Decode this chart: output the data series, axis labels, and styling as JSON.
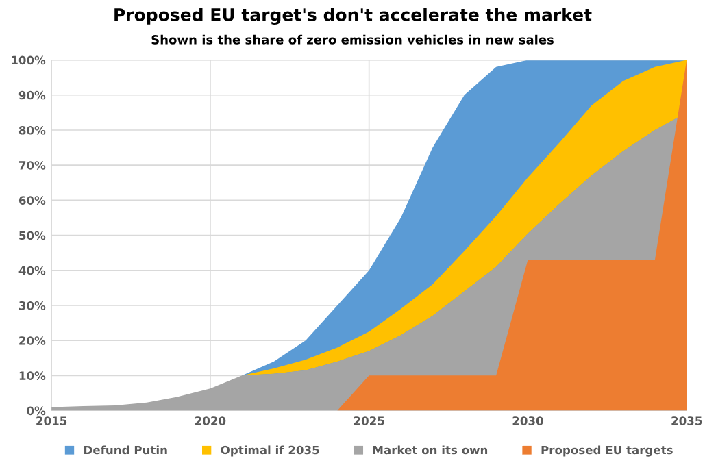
{
  "chart_data": {
    "type": "area",
    "title": "Proposed EU target's don't accelerate the market",
    "subtitle": "Shown is the share of zero emission vehicles in new sales",
    "x": [
      2015,
      2016,
      2017,
      2018,
      2019,
      2020,
      2021,
      2022,
      2023,
      2024,
      2025,
      2026,
      2027,
      2028,
      2029,
      2030,
      2031,
      2032,
      2033,
      2034,
      2035
    ],
    "series": [
      {
        "name": "Defund Putin",
        "color": "#5b9bd5",
        "x": [
          2021,
          2022,
          2023,
          2024,
          2025,
          2026,
          2027,
          2028,
          2029,
          2030,
          2031,
          2032,
          2033,
          2034,
          2035
        ],
        "values": [
          10,
          14,
          20,
          30,
          40,
          55,
          75,
          90,
          98,
          100,
          100,
          100,
          100,
          100,
          100
        ]
      },
      {
        "name": "Optimal if 2035",
        "color": "#ffc000",
        "x": [
          2021,
          2022,
          2023,
          2024,
          2025,
          2026,
          2027,
          2028,
          2029,
          2030,
          2031,
          2032,
          2033,
          2034,
          2035
        ],
        "values": [
          10,
          12,
          14.5,
          18,
          22.5,
          29,
          36,
          45.5,
          55.5,
          66.5,
          76.5,
          87,
          94,
          98,
          100
        ]
      },
      {
        "name": "Market on its own",
        "color": "#a5a5a5",
        "values": [
          1,
          1.3,
          1.5,
          2.3,
          4,
          6.3,
          10,
          10.5,
          11.5,
          14,
          17,
          21.5,
          27,
          34,
          41,
          50.5,
          59,
          67,
          74,
          80,
          85
        ]
      },
      {
        "name": "Proposed EU targets",
        "color": "#ed7d31",
        "x": [
          2024,
          2025,
          2026,
          2027,
          2028,
          2029,
          2030,
          2031,
          2032,
          2033,
          2034,
          2035
        ],
        "values": [
          0,
          10,
          10,
          10,
          10,
          10,
          43,
          43,
          43,
          43,
          43,
          100
        ]
      }
    ],
    "xlim": [
      2015,
      2035
    ],
    "xticks": [
      2015,
      2020,
      2025,
      2030,
      2035
    ],
    "ylim": [
      0,
      100
    ],
    "yticks": [
      {
        "value": 0,
        "label": "0%"
      },
      {
        "value": 10,
        "label": "10%"
      },
      {
        "value": 20,
        "label": "20%"
      },
      {
        "value": 30,
        "label": "30%"
      },
      {
        "value": 40,
        "label": "40%"
      },
      {
        "value": 50,
        "label": "50%"
      },
      {
        "value": 60,
        "label": "60%"
      },
      {
        "value": 70,
        "label": "70%"
      },
      {
        "value": 80,
        "label": "80%"
      },
      {
        "value": 90,
        "label": "90%"
      },
      {
        "value": 100,
        "label": "100%"
      }
    ],
    "grid": true,
    "legend": "bottom"
  }
}
